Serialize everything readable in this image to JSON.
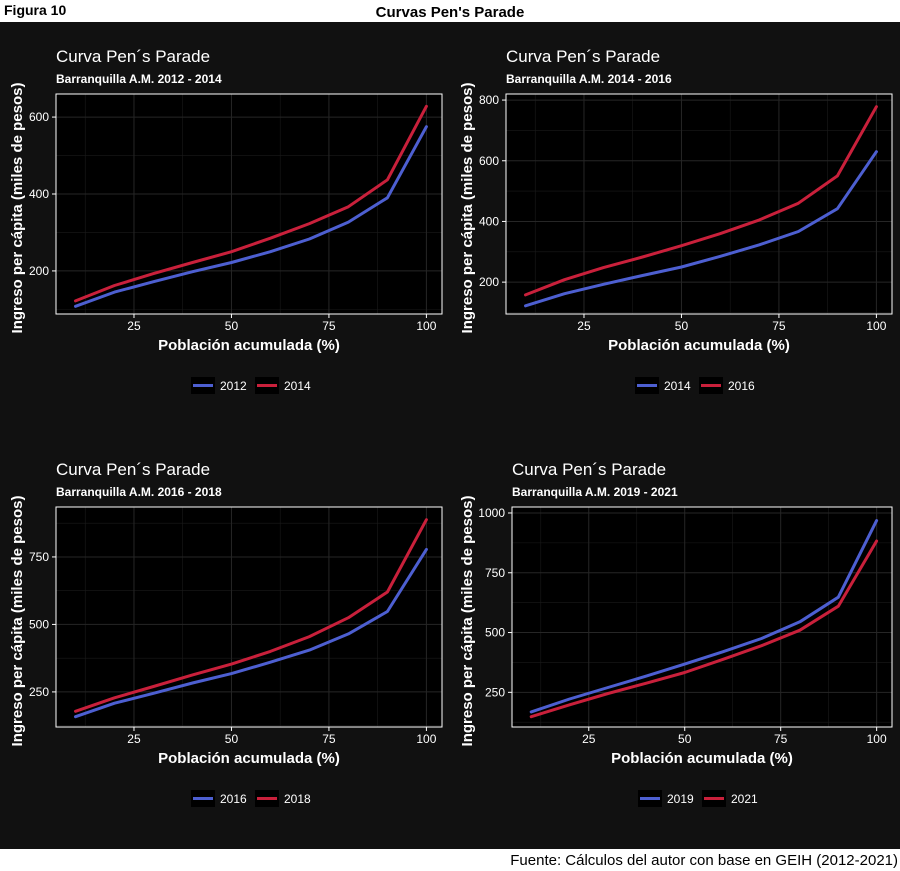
{
  "figure_label": "Figura 10",
  "title": "Curvas Pen's Parade",
  "source": "Fuente: Cálculos del autor con base en GEIH (2012-2021)",
  "colors": {
    "series_a": "#4d5fd1",
    "series_b": "#c9203b",
    "panel_background": "#000000",
    "page_background": "#111111"
  },
  "chart_data": [
    {
      "type": "line",
      "title": "Curva Pen´s Parade",
      "subtitle": "Barranquilla A.M. 2012 - 2014",
      "xlabel": "Población acumulada (%)",
      "ylabel": "Ingreso per cápita (miles de pesos)",
      "xlim": [
        5,
        104
      ],
      "ylim": [
        88,
        660
      ],
      "xticks": [
        25,
        50,
        75,
        100
      ],
      "yticks": [
        200,
        400,
        600
      ],
      "grid": true,
      "legend_position": "bottom",
      "x": [
        10,
        20,
        30,
        40,
        50,
        60,
        70,
        80,
        90,
        100
      ],
      "series": [
        {
          "name": "2012",
          "values": [
            108,
            145,
            172,
            198,
            222,
            250,
            283,
            327,
            390,
            575
          ]
        },
        {
          "name": "2014",
          "values": [
            122,
            162,
            193,
            222,
            250,
            285,
            323,
            367,
            437,
            628
          ]
        }
      ]
    },
    {
      "type": "line",
      "title": "Curva Pen´s Parade",
      "subtitle": "Barranquilla A.M. 2014 - 2016",
      "xlabel": "Población acumulada (%)",
      "ylabel": "Ingreso per cápita (miles de pesos)",
      "xlim": [
        5,
        104
      ],
      "ylim": [
        95,
        820
      ],
      "xticks": [
        25,
        50,
        75,
        100
      ],
      "yticks": [
        200,
        400,
        600,
        800
      ],
      "grid": true,
      "legend_position": "bottom",
      "x": [
        10,
        20,
        30,
        40,
        50,
        60,
        70,
        80,
        90,
        100
      ],
      "series": [
        {
          "name": "2014",
          "values": [
            122,
            162,
            193,
            222,
            250,
            285,
            323,
            367,
            442,
            630
          ]
        },
        {
          "name": "2016",
          "values": [
            158,
            208,
            248,
            283,
            320,
            360,
            405,
            460,
            550,
            778
          ]
        }
      ]
    },
    {
      "type": "line",
      "title": "Curva Pen´s Parade",
      "subtitle": "Barranquilla A.M. 2016 - 2018",
      "xlabel": "Población acumulada (%)",
      "ylabel": "Ingreso per cápita (miles de pesos)",
      "xlim": [
        5,
        104
      ],
      "ylim": [
        120,
        935
      ],
      "xticks": [
        25,
        50,
        75,
        100
      ],
      "yticks": [
        250,
        500,
        750
      ],
      "grid": true,
      "legend_position": "bottom",
      "x": [
        10,
        20,
        30,
        40,
        50,
        60,
        70,
        80,
        90,
        100
      ],
      "series": [
        {
          "name": "2016",
          "values": [
            158,
            208,
            245,
            283,
            318,
            360,
            405,
            465,
            548,
            778
          ]
        },
        {
          "name": "2018",
          "values": [
            178,
            228,
            270,
            313,
            353,
            400,
            455,
            525,
            620,
            888
          ]
        }
      ]
    },
    {
      "type": "line",
      "title": "Curva Pen´s Parade",
      "subtitle": "Barranquilla A.M. 2019 - 2021",
      "xlabel": "Población acumulada (%)",
      "ylabel": "Ingreso per cápita (miles de pesos)",
      "xlim": [
        5,
        104
      ],
      "ylim": [
        105,
        1025
      ],
      "xticks": [
        25,
        50,
        75,
        100
      ],
      "yticks": [
        250,
        500,
        750,
        1000
      ],
      "grid": true,
      "legend_position": "bottom",
      "x": [
        10,
        20,
        30,
        40,
        50,
        60,
        70,
        80,
        90,
        100
      ],
      "series": [
        {
          "name": "2019",
          "values": [
            168,
            222,
            270,
            318,
            368,
            420,
            475,
            545,
            648,
            968
          ]
        },
        {
          "name": "2021",
          "values": [
            148,
            198,
            245,
            288,
            333,
            388,
            445,
            510,
            610,
            883
          ]
        }
      ]
    }
  ]
}
